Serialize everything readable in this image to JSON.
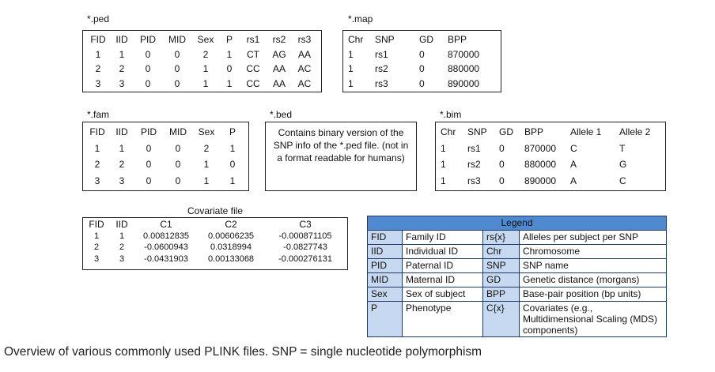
{
  "ped": {
    "label": "*.ped",
    "headers": [
      "FID",
      "IID",
      "PID",
      "MID",
      "Sex",
      "P",
      "rs1",
      "rs2",
      "rs3"
    ],
    "rows": [
      [
        "1",
        "1",
        "0",
        "0",
        "2",
        "1",
        "CT",
        "AG",
        "AA"
      ],
      [
        "2",
        "2",
        "0",
        "0",
        "1",
        "0",
        "CC",
        "AA",
        "AC"
      ],
      [
        "3",
        "3",
        "0",
        "0",
        "1",
        "1",
        "CC",
        "AA",
        "AC"
      ]
    ]
  },
  "map": {
    "label": "*.map",
    "headers": [
      "Chr",
      "SNP",
      "GD",
      "BPP"
    ],
    "rows": [
      [
        "1",
        "rs1",
        "0",
        "870000"
      ],
      [
        "1",
        "rs2",
        "0",
        "880000"
      ],
      [
        "1",
        "rs3",
        "0",
        "890000"
      ]
    ]
  },
  "fam": {
    "label": "*.fam",
    "headers": [
      "FID",
      "IID",
      "PID",
      "MID",
      "Sex",
      "P"
    ],
    "rows": [
      [
        "1",
        "1",
        "0",
        "0",
        "2",
        "1"
      ],
      [
        "2",
        "2",
        "0",
        "0",
        "1",
        "0"
      ],
      [
        "3",
        "3",
        "0",
        "0",
        "1",
        "1"
      ]
    ]
  },
  "bed": {
    "label": "*.bed",
    "text": "Contains binary version of the SNP info of the *.ped file. (not in a format readable for humans)"
  },
  "bim": {
    "label": "*.bim",
    "headers": [
      "Chr",
      "SNP",
      "GD",
      "BPP",
      "Allele 1",
      "Allele 2"
    ],
    "rows": [
      [
        "1",
        "rs1",
        "0",
        "870000",
        "C",
        "T"
      ],
      [
        "1",
        "rs2",
        "0",
        "880000",
        "A",
        "G"
      ],
      [
        "1",
        "rs3",
        "0",
        "890000",
        "A",
        "C"
      ]
    ]
  },
  "covariate": {
    "label": "Covariate file",
    "headers": [
      "FID",
      "IID",
      "C1",
      "C2",
      "C3"
    ],
    "rows": [
      [
        "1",
        "1",
        "0.00812835",
        "0.00606235",
        "-0.000871105"
      ],
      [
        "2",
        "2",
        "-0.0600943",
        "0.0318994",
        "-0.0827743"
      ],
      [
        "3",
        "3",
        "-0.0431903",
        "0.00133068",
        "-0.000276131"
      ]
    ]
  },
  "legend": {
    "title": "Legend",
    "rows": [
      [
        "FID",
        "Family ID",
        "rs{x}",
        "Alleles per subject per SNP"
      ],
      [
        "IID",
        "Individual ID",
        "Chr",
        "Chromosome"
      ],
      [
        "PID",
        "Paternal ID",
        "SNP",
        "SNP name"
      ],
      [
        "MID",
        "Maternal ID",
        "GD",
        "Genetic distance (morgans)"
      ],
      [
        "Sex",
        "Sex of subject",
        "BPP",
        "Base-pair position (bp units)"
      ],
      [
        "P",
        "Phenotype",
        "C{x}",
        "Covariates (e.g., Multidimensional Scaling (MDS) components)"
      ]
    ]
  },
  "caption": "Overview of various commonly used PLINK files. SNP = single nucleotide polymorphism"
}
